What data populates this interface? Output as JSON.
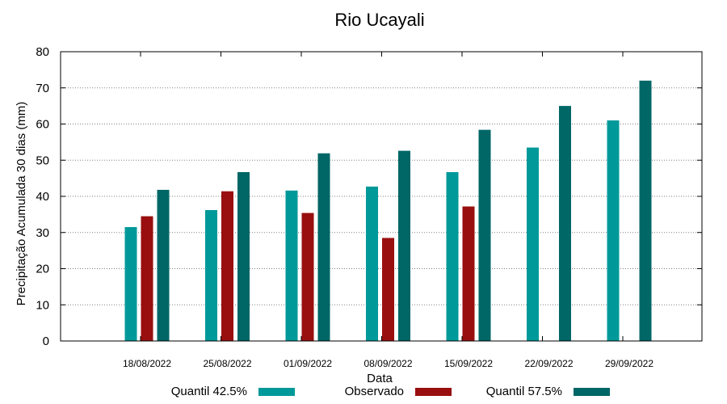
{
  "chart_data": {
    "type": "bar",
    "title": "Rio Ucayali",
    "xlabel": "Data",
    "ylabel": "Precipitação Acumulada 30 dias (mm)",
    "ylim": [
      0,
      80
    ],
    "yticks": [
      0,
      10,
      20,
      30,
      40,
      50,
      60,
      70,
      80
    ],
    "grid": true,
    "legend_position": "bottom",
    "categories": [
      "18/08/2022",
      "25/08/2022",
      "01/09/2022",
      "08/09/2022",
      "15/09/2022",
      "22/09/2022",
      "29/09/2022"
    ],
    "series": [
      {
        "name": "Quantil 42.5%",
        "color": "#009999",
        "values": [
          31.5,
          36.2,
          41.6,
          42.7,
          46.7,
          53.5,
          61.0
        ]
      },
      {
        "name": "Observado",
        "color": "#990f0f",
        "values": [
          34.5,
          41.4,
          35.4,
          28.5,
          37.2,
          null,
          null
        ]
      },
      {
        "name": "Quantil 57.5%",
        "color": "#006666",
        "values": [
          41.8,
          46.7,
          51.9,
          52.6,
          58.4,
          65.0,
          72.0
        ]
      }
    ]
  }
}
